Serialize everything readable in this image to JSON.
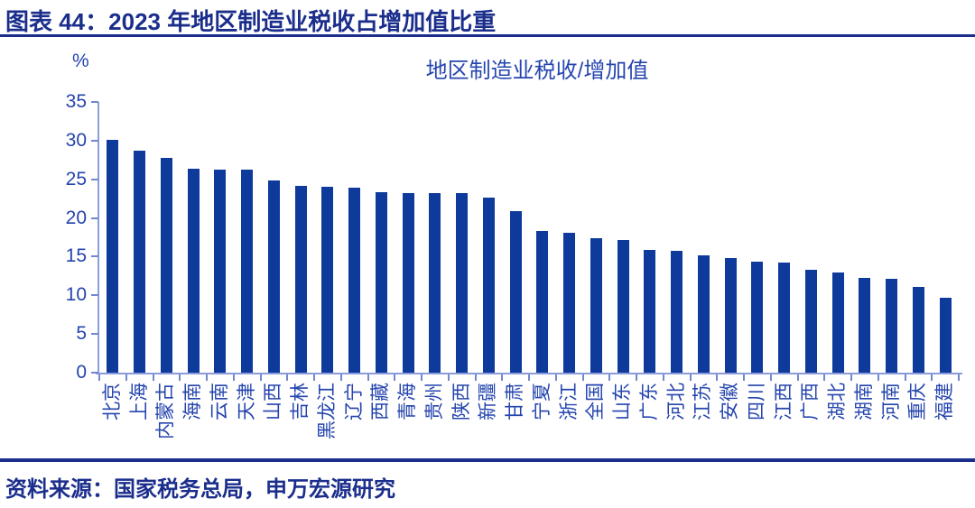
{
  "header": {
    "title": "图表 44：2023 年地区制造业税收占增加值比重"
  },
  "source": {
    "text": "资料来源：国家税务总局，申万宏源研究"
  },
  "colors": {
    "bar": "#0d3a9b",
    "accent_navy": "#1b2e8c",
    "axis_line": "#8b9cdb",
    "tick": "#7287cf",
    "label_blue": "#2545ae"
  },
  "chart_data": {
    "type": "bar",
    "title": "地区制造业税收/增加值",
    "unit_label": "%",
    "xlabel": "",
    "ylabel": "%",
    "ylim": [
      0,
      35
    ],
    "yticks": [
      0,
      5,
      10,
      15,
      20,
      25,
      30,
      35
    ],
    "grid": false,
    "legend_position": "none",
    "categories": [
      "北京",
      "上海",
      "内蒙古",
      "海南",
      "云南",
      "天津",
      "山西",
      "吉林",
      "黑龙江",
      "辽宁",
      "西藏",
      "青海",
      "贵州",
      "陕西",
      "新疆",
      "甘肃",
      "宁夏",
      "浙江",
      "全国",
      "山东",
      "广东",
      "河北",
      "江苏",
      "安徽",
      "四川",
      "江西",
      "广西",
      "湖北",
      "湖南",
      "河南",
      "重庆",
      "福建"
    ],
    "values": [
      30.1,
      28.7,
      27.8,
      26.4,
      26.3,
      26.3,
      24.9,
      24.1,
      24.0,
      23.9,
      23.3,
      23.2,
      23.2,
      23.2,
      22.6,
      20.9,
      18.3,
      18.1,
      17.4,
      17.1,
      15.9,
      15.8,
      15.2,
      14.8,
      14.3,
      14.2,
      13.3,
      12.9,
      12.3,
      12.1,
      11.1,
      9.7
    ]
  }
}
